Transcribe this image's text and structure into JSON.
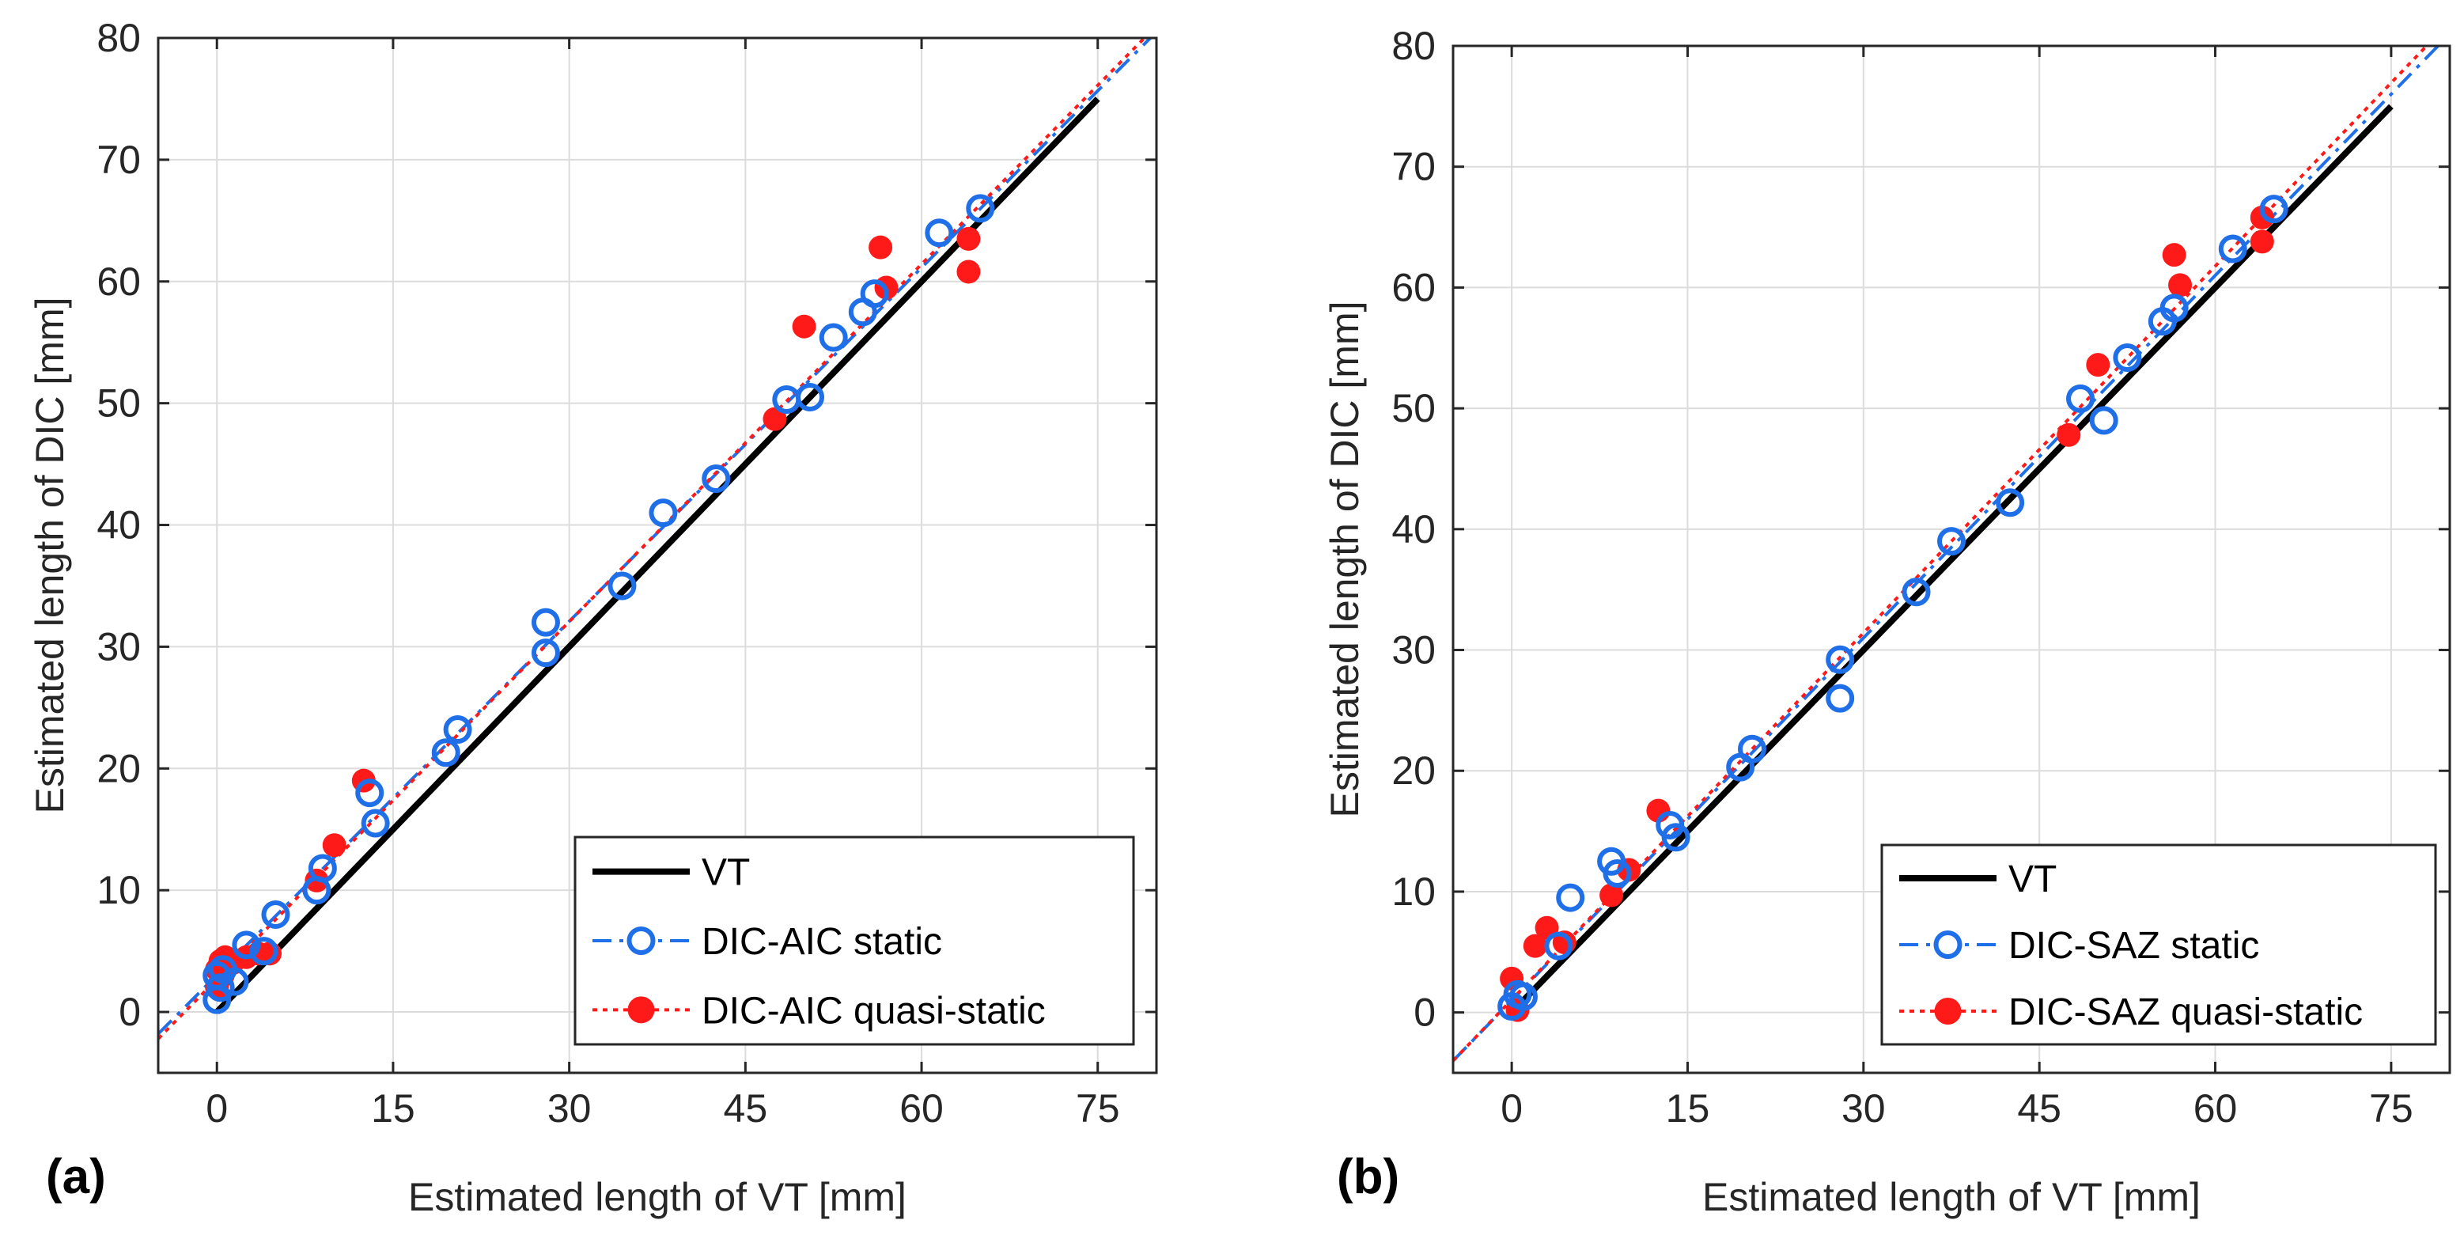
{
  "colors": {
    "vt": "#000000",
    "static": "#1f6fe8",
    "quasi_static": "#ff1a1a",
    "axes": "#262626",
    "grid": "#dcdcdc"
  },
  "chart_data": [
    {
      "panel_label": "(a)",
      "type": "scatter",
      "xlabel": "Estimated length of VT [mm]",
      "ylabel": "Estimated length of DIC [mm]",
      "xlim": [
        -5,
        80
      ],
      "ylim": [
        -5,
        80
      ],
      "xticks": [
        0,
        15,
        30,
        45,
        60,
        75
      ],
      "yticks": [
        0,
        10,
        20,
        30,
        40,
        50,
        60,
        70,
        80
      ],
      "grid": true,
      "legend_position": "bottom-right",
      "series": [
        {
          "name": "VT",
          "kind": "line",
          "style": "solid",
          "x": [
            0,
            75
          ],
          "y": [
            0,
            75
          ]
        },
        {
          "name": "DIC-AIC static",
          "kind": "markers+fit",
          "marker": "open-circle",
          "style": "dashdot",
          "fit": {
            "x": [
              -5,
              80
            ],
            "y": [
              -1.8,
              80.5
            ]
          },
          "x": [
            0,
            0,
            0.3,
            0.5,
            1.5,
            2.5,
            4,
            5,
            8.5,
            9,
            13,
            13.5,
            19.5,
            20.5,
            28,
            28,
            34.5,
            38,
            42.5,
            48.5,
            50.5,
            52.5,
            55,
            56,
            61.5,
            65
          ],
          "y": [
            1,
            3,
            2,
            3.5,
            2.5,
            5.5,
            5,
            8,
            10,
            11.8,
            18,
            15.5,
            21.3,
            23.2,
            32,
            29.5,
            35,
            41,
            43.8,
            50.3,
            50.5,
            55.4,
            57.5,
            59,
            64,
            66
          ]
        },
        {
          "name": "DIC-AIC quasi-static",
          "kind": "markers+fit",
          "marker": "filled-circle",
          "style": "dotted",
          "fit": {
            "x": [
              -5,
              80
            ],
            "y": [
              -2.2,
              81
            ]
          },
          "x": [
            0,
            0,
            0.3,
            0.5,
            0.7,
            1.3,
            2.5,
            3.5,
            4.5,
            8.5,
            10,
            12.5,
            47.5,
            50,
            56.5,
            57,
            64,
            64
          ],
          "y": [
            2,
            3.5,
            4.2,
            3,
            4.5,
            4,
            4.5,
            4.8,
            4.8,
            10.8,
            13.7,
            19,
            48.7,
            56.3,
            62.8,
            59.5,
            63.5,
            60.8
          ]
        }
      ]
    },
    {
      "panel_label": "(b)",
      "type": "scatter",
      "xlabel": "Estimated length of VT [mm]",
      "ylabel": "Estimated length of DIC [mm]",
      "xlim": [
        -5,
        80
      ],
      "ylim": [
        -5,
        80
      ],
      "xticks": [
        0,
        15,
        30,
        45,
        60,
        75
      ],
      "yticks": [
        0,
        10,
        20,
        30,
        40,
        50,
        60,
        70,
        80
      ],
      "grid": true,
      "legend_position": "bottom-right",
      "series": [
        {
          "name": "VT",
          "kind": "line",
          "style": "solid",
          "x": [
            0,
            75
          ],
          "y": [
            0,
            75
          ]
        },
        {
          "name": "DIC-SAZ static",
          "kind": "markers+fit",
          "marker": "open-circle",
          "style": "dashdot",
          "fit": {
            "x": [
              -5,
              80
            ],
            "y": [
              -4,
              81
            ]
          },
          "x": [
            0,
            0.5,
            1,
            4,
            5,
            8.5,
            9,
            13.5,
            14,
            19.5,
            20.5,
            28,
            28,
            34.5,
            37.5,
            42.5,
            48.5,
            50.5,
            52.5,
            55.5,
            56.5,
            61.5,
            65
          ],
          "y": [
            0.5,
            1.5,
            1.3,
            5.5,
            9.5,
            12.5,
            11.5,
            15.5,
            14.5,
            20.3,
            21.8,
            29.2,
            26,
            34.8,
            39,
            42.2,
            50.8,
            49,
            54.2,
            57.2,
            58.3,
            63.2,
            66.5
          ]
        },
        {
          "name": "DIC-SAZ quasi-static",
          "kind": "markers+fit",
          "marker": "filled-circle",
          "style": "dotted",
          "fit": {
            "x": [
              -5,
              80
            ],
            "y": [
              -4,
              82
            ]
          },
          "x": [
            0,
            0.5,
            2,
            3,
            4.5,
            8.5,
            10,
            12.5,
            47.5,
            50,
            56.5,
            57,
            64,
            64
          ],
          "y": [
            2.8,
            0.2,
            5.5,
            7,
            5.8,
            9.7,
            11.8,
            16.7,
            47.8,
            53.6,
            62.7,
            60.2,
            65.8,
            63.8
          ]
        }
      ]
    }
  ]
}
